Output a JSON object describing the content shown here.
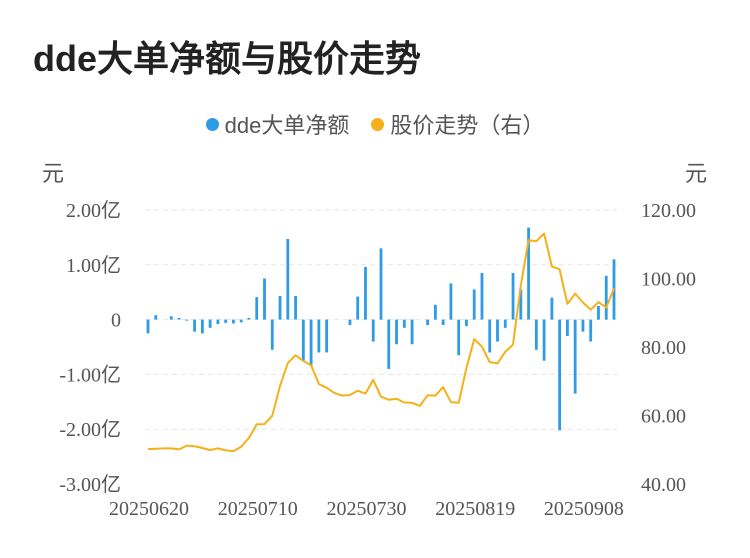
{
  "title": "dde大单净额与股价走势",
  "legend": [
    {
      "label": "dde大单净额",
      "color": "#2e9be6"
    },
    {
      "label": "股价走势（右）",
      "color": "#f5b01a"
    }
  ],
  "units": {
    "left": "元",
    "right": "元"
  },
  "chart_data": {
    "type": "bar+line",
    "x_tick_labels": [
      "20250620",
      "20250710",
      "20250730",
      "20250819",
      "20250908"
    ],
    "left_axis": {
      "ticks": [
        "2.00亿",
        "1.00亿",
        "0",
        "-1.00亿",
        "-2.00亿",
        "-3.00亿"
      ],
      "ylim": [
        -3,
        2
      ],
      "unit": "亿元"
    },
    "right_axis": {
      "ticks": [
        "120.00",
        "100.00",
        "80.00",
        "60.00",
        "40.00"
      ],
      "ylim": [
        40,
        120
      ]
    },
    "grid": true,
    "legend_position": "top-center",
    "series": [
      {
        "name": "dde大单净额",
        "type": "bar",
        "color": "#2e9be6",
        "values": [
          -0.25,
          0.08,
          0.0,
          0.06,
          0.03,
          -0.02,
          -0.22,
          -0.25,
          -0.15,
          -0.08,
          -0.06,
          -0.07,
          -0.05,
          0.03,
          0.41,
          0.75,
          -0.55,
          0.43,
          1.47,
          0.43,
          -0.75,
          -0.85,
          -0.6,
          -0.6,
          0.0,
          0.0,
          -0.1,
          0.42,
          0.96,
          -0.4,
          1.3,
          -0.9,
          -0.45,
          -0.15,
          -0.45,
          0.0,
          -0.1,
          0.27,
          -0.1,
          0.66,
          -0.65,
          -0.12,
          0.55,
          0.85,
          -0.6,
          -0.4,
          -0.15,
          0.85,
          0.55,
          1.68,
          -0.55,
          -0.75,
          0.4,
          -2.02,
          -0.3,
          -1.35,
          -0.22,
          -0.4,
          0.25,
          0.8,
          1.1
        ]
      },
      {
        "name": "股价走势（右）",
        "type": "line",
        "color": "#f5b01a",
        "axis": "right",
        "values": [
          50.2,
          50.3,
          50.4,
          50.4,
          50.1,
          51.2,
          51.0,
          50.5,
          49.9,
          50.4,
          49.8,
          49.6,
          50.9,
          53.5,
          57.4,
          57.5,
          59.9,
          68.6,
          75.3,
          77.6,
          75.9,
          74.7,
          69.2,
          68.1,
          66.6,
          65.8,
          66.0,
          67.2,
          66.4,
          70.4,
          65.5,
          64.6,
          64.9,
          63.8,
          63.7,
          62.8,
          65.9,
          65.8,
          68.3,
          63.9,
          63.7,
          73.8,
          82.3,
          80.1,
          75.6,
          75.2,
          78.6,
          80.7,
          98.0,
          111.2,
          110.9,
          113.1,
          103.5,
          102.7,
          92.6,
          95.6,
          93.0,
          90.9,
          93.1,
          91.5,
          97.1
        ]
      }
    ]
  }
}
